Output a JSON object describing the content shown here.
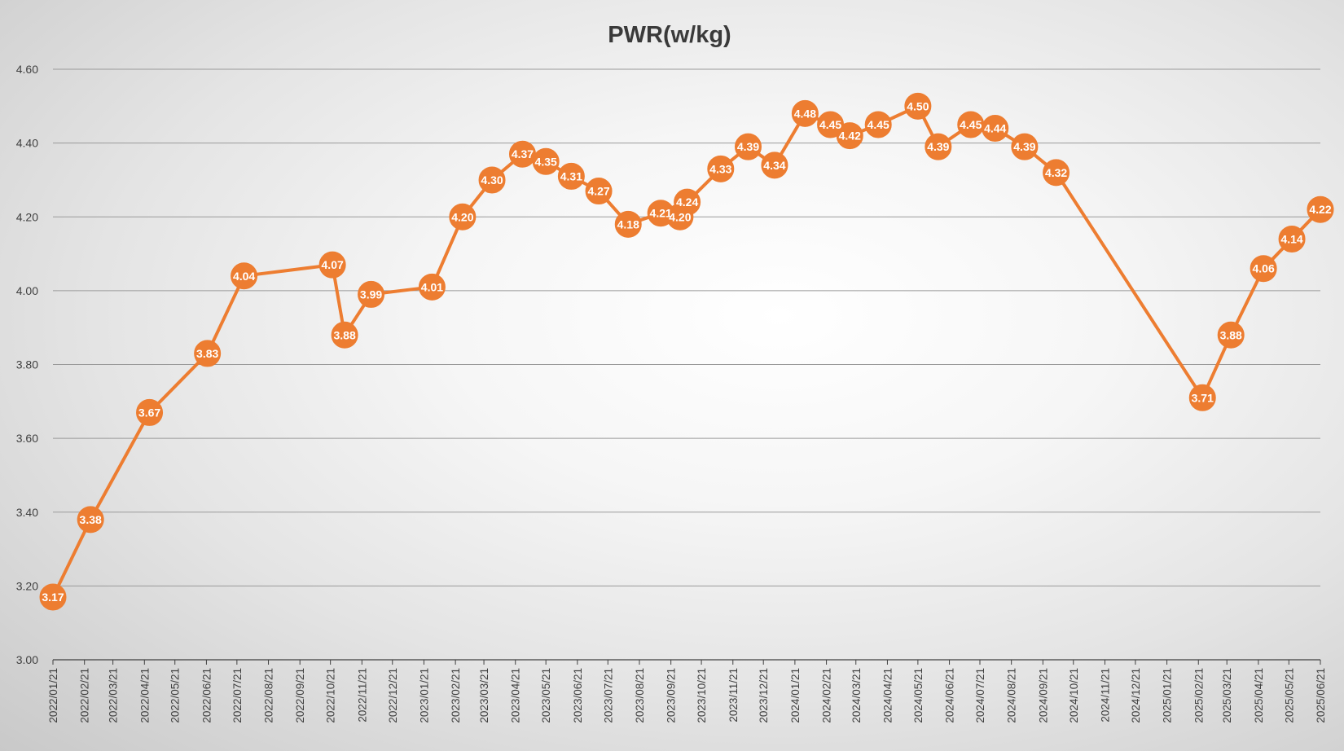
{
  "colors": {
    "series": "#ED7D31",
    "gridline": "#9a9a9a",
    "axis": "#404040",
    "label_text": "#ffffff"
  },
  "chart_data": {
    "type": "line",
    "title": "PWR(w/kg)",
    "xlabel": "",
    "ylabel": "",
    "ylim": [
      3.0,
      4.6
    ],
    "y_ticks": [
      "3.00",
      "3.20",
      "3.40",
      "3.60",
      "3.80",
      "4.00",
      "4.20",
      "4.40",
      "4.60"
    ],
    "x_tick_labels": [
      "2022/01/21",
      "2022/02/21",
      "2022/03/21",
      "2022/04/21",
      "2022/05/21",
      "2022/06/21",
      "2022/07/21",
      "2022/08/21",
      "2022/09/21",
      "2022/10/21",
      "2022/11/21",
      "2022/12/21",
      "2023/01/21",
      "2023/02/21",
      "2023/03/21",
      "2023/04/21",
      "2023/05/21",
      "2023/06/21",
      "2023/07/21",
      "2023/08/21",
      "2023/09/21",
      "2023/10/21",
      "2023/11/21",
      "2023/12/21",
      "2024/01/21",
      "2024/02/21",
      "2024/03/21",
      "2024/04/21",
      "2024/05/21",
      "2024/06/21",
      "2024/07/21",
      "2024/08/21",
      "2024/09/21",
      "2024/10/21",
      "2024/11/21",
      "2024/12/21",
      "2025/01/21",
      "2025/02/21",
      "2025/03/21",
      "2025/04/21",
      "2025/05/21",
      "2025/06/21"
    ],
    "grid": true,
    "legend": "none",
    "markers": "circle",
    "data_labels": true,
    "series": [
      {
        "points": [
          {
            "x": "2022/01/21",
            "y": 3.17
          },
          {
            "x": "2022/02/27",
            "y": 3.38
          },
          {
            "x": "2022/04/26",
            "y": 3.67
          },
          {
            "x": "2022/06/22",
            "y": 3.83
          },
          {
            "x": "2022/07/28",
            "y": 4.04
          },
          {
            "x": "2022/10/23",
            "y": 4.07
          },
          {
            "x": "2022/11/04",
            "y": 3.88
          },
          {
            "x": "2022/11/30",
            "y": 3.99
          },
          {
            "x": "2023/01/29",
            "y": 4.01
          },
          {
            "x": "2023/02/28",
            "y": 4.2
          },
          {
            "x": "2023/03/29",
            "y": 4.3
          },
          {
            "x": "2023/04/28",
            "y": 4.37
          },
          {
            "x": "2023/05/21",
            "y": 4.35
          },
          {
            "x": "2023/06/15",
            "y": 4.31
          },
          {
            "x": "2023/07/12",
            "y": 4.27
          },
          {
            "x": "2023/08/10",
            "y": 4.18
          },
          {
            "x": "2023/09/11",
            "y": 4.21
          },
          {
            "x": "2023/09/30",
            "y": 4.2
          },
          {
            "x": "2023/10/07",
            "y": 4.24
          },
          {
            "x": "2023/11/09",
            "y": 4.33
          },
          {
            "x": "2023/12/06",
            "y": 4.39
          },
          {
            "x": "2024/01/01",
            "y": 4.34
          },
          {
            "x": "2024/01/31",
            "y": 4.48
          },
          {
            "x": "2024/02/25",
            "y": 4.45
          },
          {
            "x": "2024/03/15",
            "y": 4.42
          },
          {
            "x": "2024/04/12",
            "y": 4.45
          },
          {
            "x": "2024/05/21",
            "y": 4.5
          },
          {
            "x": "2024/06/10",
            "y": 4.39
          },
          {
            "x": "2024/07/12",
            "y": 4.45
          },
          {
            "x": "2024/08/05",
            "y": 4.44
          },
          {
            "x": "2024/09/03",
            "y": 4.39
          },
          {
            "x": "2024/10/04",
            "y": 4.32
          },
          {
            "x": "2025/02/25",
            "y": 3.71
          },
          {
            "x": "2025/03/25",
            "y": 3.88
          },
          {
            "x": "2025/04/26",
            "y": 4.06
          },
          {
            "x": "2025/05/24",
            "y": 4.14
          },
          {
            "x": "2025/06/21",
            "y": 4.22
          }
        ]
      }
    ]
  }
}
